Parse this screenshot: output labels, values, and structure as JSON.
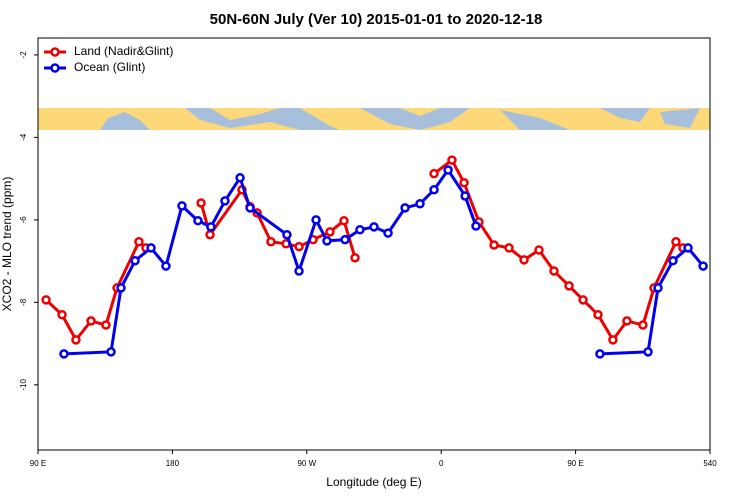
{
  "chart_data": {
    "type": "line",
    "title": "50N-60N July (Ver 10)   2015-01-01 to 2020-12-18",
    "xlabel": "Longitude (deg E)",
    "ylabel": "XCO2 - MLO trend (ppm)",
    "xlim": [
      90,
      540
    ],
    "xticks": [
      {
        "value": 90,
        "label": "90 E"
      },
      180,
      {
        "value": 270,
        "label": "90 W"
      },
      {
        "value": 360,
        "label": "0"
      },
      {
        "value": 450,
        "label": "90 E"
      },
      540
    ],
    "ylim": [
      -11.58,
      -1.59
    ],
    "yticks": [
      -2,
      -4,
      -6,
      -8,
      -10
    ],
    "legend": "upper left",
    "series": [
      {
        "name": "Land (Nadir&Glint)",
        "color": "#ee0000",
        "x": [
          95.4,
          106.1,
          115.4,
          125.5,
          135.5,
          142.9,
          157.6,
          162.3,
          null,
          199.2,
          205.2,
          226.6,
          232,
          236.7,
          246,
          256.1,
          264.8,
          274.2,
          285.5,
          294.9,
          302.3,
          null,
          355.2,
          367.2,
          375.3,
          385.3,
          395.4,
          405.4,
          415.5,
          425.5,
          435.5,
          445.6,
          455,
          465,
          475,
          484.4,
          495.1,
          502.5,
          517.2,
          521.9
        ],
        "values": [
          -7.94,
          -8.3,
          -8.91,
          -8.45,
          -8.55,
          -7.65,
          -6.53,
          -6.68,
          null,
          -5.59,
          -6.36,
          -5.27,
          -5.68,
          -5.83,
          -6.53,
          -6.58,
          -6.65,
          -6.48,
          -6.29,
          -6.02,
          -6.92,
          null,
          -4.88,
          -4.55,
          -5.1,
          -6.05,
          -6.61,
          -6.68,
          -6.97,
          -6.73,
          -7.24,
          -7.6,
          -7.94,
          -8.3,
          -8.91,
          -8.45,
          -8.55,
          -7.65,
          -6.53,
          -6.68
        ]
      },
      {
        "name": "Ocean (Glint)",
        "color": "#0000ee",
        "x": [
          107.4,
          138.9,
          145.6,
          155,
          165.7,
          175.7,
          186.4,
          197.1,
          205.8,
          215.2,
          225.3,
          232,
          256.7,
          264.8,
          276.2,
          283.5,
          295.6,
          305.6,
          315,
          324.4,
          335.8,
          345.8,
          355.2,
          364.6,
          376,
          383.3,
          null,
          466.3,
          498.5,
          505.2,
          515.2,
          525.3,
          535.4
        ],
        "values": [
          -9.25,
          -9.2,
          -7.65,
          -6.99,
          -6.68,
          -7.12,
          -5.66,
          -6.02,
          -6.17,
          -5.54,
          -4.98,
          -5.71,
          -6.36,
          -7.24,
          -6.0,
          -6.51,
          -6.48,
          -6.24,
          -6.17,
          -6.32,
          -5.71,
          -5.61,
          -5.27,
          -4.79,
          -5.42,
          -6.15,
          null,
          -9.25,
          -9.2,
          -7.65,
          -6.99,
          -6.68,
          -7.12
        ]
      }
    ]
  }
}
